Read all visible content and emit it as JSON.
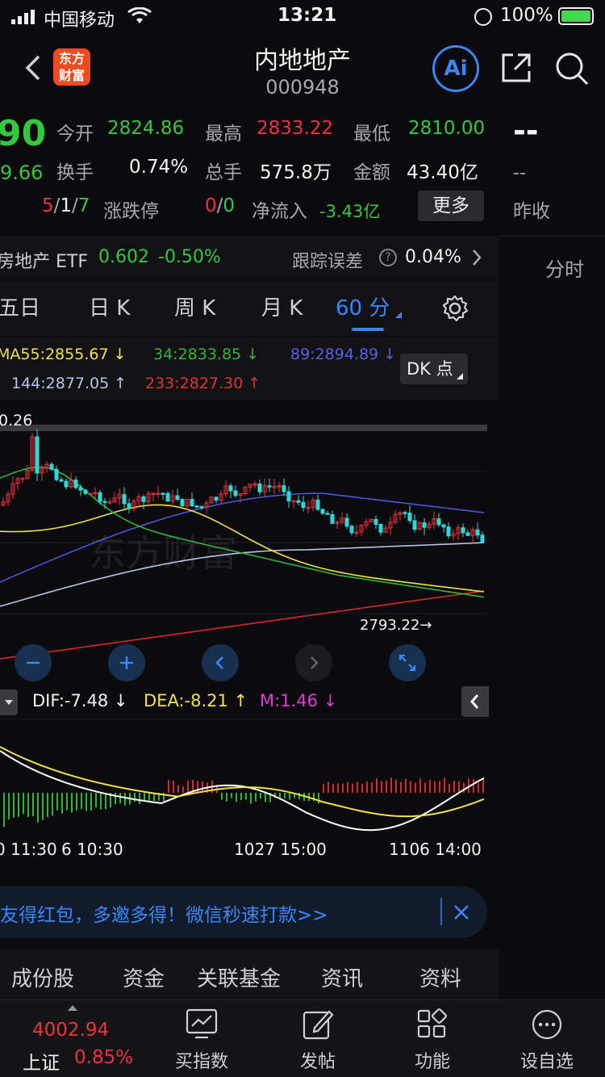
{
  "status_bar": {
    "carrier": "中国移动",
    "time": "13:21",
    "battery": "100%"
  },
  "nav": {
    "logo_line1": "东方",
    "logo_line2": "财富",
    "title": "内地地产",
    "code": "000948",
    "ai_label": "Ai"
  },
  "quote": {
    "price": "90",
    "change": "9.66",
    "rows": [
      [
        {
          "label": "今开",
          "value": "2824.86"
        },
        {
          "label": "最高",
          "value": "2833.22"
        },
        {
          "label": "最低",
          "value": "2810.00"
        }
      ],
      [
        {
          "label": "换手",
          "value": "0.74%"
        },
        {
          "label": "总手",
          "value": "575.8万"
        },
        {
          "label": "金额",
          "value": "43.40亿"
        }
      ]
    ],
    "limit": {
      "up": "5",
      "flat": "1",
      "down": "7",
      "label": "涨跌停"
    },
    "limit_stop": {
      "up": "0",
      "down": "0"
    },
    "net_inflow": {
      "label": "净流入",
      "value": "-3.43亿"
    },
    "more_button": "更多"
  },
  "right_panel": {
    "price_dash": "--",
    "sub_dash": "--",
    "prev_close": "昨收",
    "intraday": "分时"
  },
  "etf": {
    "name": "房地产 ETF",
    "price": "0.602",
    "change": "-0.50%",
    "tracking_label": "跟踪误差",
    "tracking_value": "0.04%"
  },
  "tabs": [
    {
      "label": "五日"
    },
    {
      "label": "日 K"
    },
    {
      "label": "周 K"
    },
    {
      "label": "月 K"
    },
    {
      "label": "60 分"
    }
  ],
  "ma_legend": {
    "ma55": "MA55:2855.67 ↓",
    "ma34": "34:2833.85 ↓",
    "ma89": "89:2894.89 ↓",
    "ma144": "144:2877.05 ↑",
    "ma233": "233:2827.30 ↑",
    "dk_button": "DK 点"
  },
  "chart": {
    "high_label": "0.26",
    "low_label": "2793.22→",
    "watermark": "东方财富"
  },
  "macd": {
    "dif": "DIF:-7.48 ↓",
    "dea": "DEA:-8.21 ↑",
    "m": "M:1.46 ↓",
    "time_labels": [
      "0 11:30",
      "6 10:30",
      "1027 15:00",
      "1106 14:00"
    ]
  },
  "chart_data": {
    "type": "candlestick",
    "series": [
      {
        "name": "MA55",
        "color": "#f2e24a"
      },
      {
        "name": "34",
        "color": "#2fb53a"
      },
      {
        "name": "89",
        "color": "#4a56d8"
      },
      {
        "name": "144",
        "color": "#b7c3e8"
      },
      {
        "name": "233",
        "color": "#d62a2a"
      }
    ],
    "annotations": [
      "2793.22"
    ]
  },
  "banner": {
    "text": "友得红包，多邀多得！微信秒速打款>>"
  },
  "bottom_tabs": [
    {
      "label": "成份股"
    },
    {
      "label": "资金"
    },
    {
      "label": "关联基金"
    },
    {
      "label": "资讯"
    },
    {
      "label": "资料"
    }
  ],
  "footer": {
    "index_value": "4002.94",
    "index_name": "上证",
    "index_change": "0.85%",
    "items": [
      {
        "label": "买指数"
      },
      {
        "label": "发帖"
      },
      {
        "label": "功能"
      },
      {
        "label": "设自选"
      }
    ]
  },
  "colors": {
    "accent": "#3b86f7",
    "up": "#f0303a",
    "down": "#35c83c"
  }
}
